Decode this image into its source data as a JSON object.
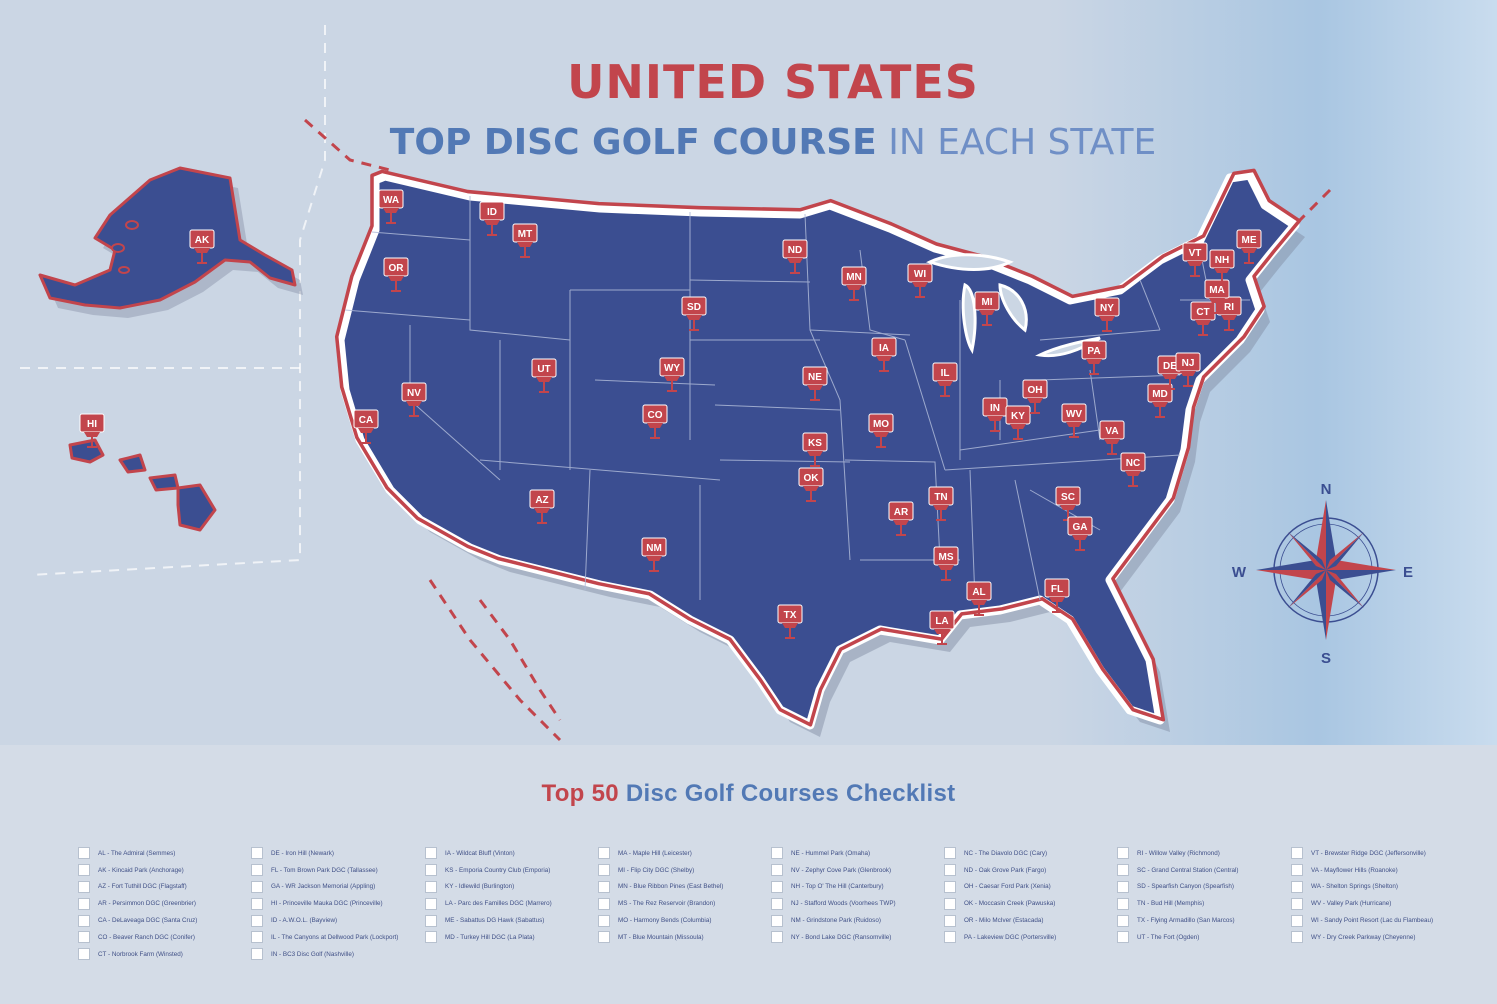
{
  "title": {
    "main": "UNITED STATES",
    "sub_bold": "TOP DISC GOLF COURSE",
    "sub_light": "IN EACH STATE"
  },
  "colors": {
    "land": "#3b4e91",
    "border_red": "#c2454c",
    "title_blue": "#5279b5",
    "background": "#cbd6e4"
  },
  "compass": {
    "n": "N",
    "e": "E",
    "s": "S",
    "w": "W"
  },
  "pins": [
    "WA",
    "OR",
    "ID",
    "MT",
    "CA",
    "NV",
    "UT",
    "WY",
    "CO",
    "AZ",
    "NM",
    "TX",
    "ND",
    "SD",
    "NE",
    "KS",
    "OK",
    "MN",
    "IA",
    "MO",
    "AR",
    "LA",
    "WI",
    "IL",
    "MS",
    "TN",
    "AL",
    "MI",
    "IN",
    "KY",
    "OH",
    "WV",
    "VA",
    "NC",
    "SC",
    "GA",
    "FL",
    "PA",
    "NY",
    "MD",
    "DE",
    "NJ",
    "CT",
    "RI",
    "MA",
    "NH",
    "VT",
    "ME",
    "AK",
    "HI"
  ],
  "checklist": {
    "title_red": "Top 50",
    "title_blue": "Disc Golf Courses Checklist",
    "columns": [
      [
        "AL - The Admiral (Semmes)",
        "AK - Kincaid Park (Anchorage)",
        "AZ - Fort Tuthill DGC (Flagstaff)",
        "AR - Persimmon DGC (Greenbrier)",
        "CA - DeLaveaga DGC (Santa Cruz)",
        "CO - Beaver Ranch DGC (Conifer)",
        "CT - Norbrook Farm (Winsted)"
      ],
      [
        "DE - Iron Hill (Newark)",
        "FL - Tom Brown Park DGC (Tallassee)",
        "GA - WR Jackson Memorial (Appling)",
        "HI - Princeville Mauka DGC (Princeville)",
        "ID - A.W.O.L. (Bayview)",
        "IL - The Canyons at Dellwood Park (Lockport)",
        "IN - BC3 Disc Golf (Nashville)"
      ],
      [
        "IA - Wildcat Bluff (Vinton)",
        "KS - Emporia Country Club (Emporia)",
        "KY - Idlewild (Burlington)",
        "LA - Parc des Familles DGC (Marrero)",
        "ME - Sabattus DG Hawk (Sabattus)",
        "MD - Turkey Hill DGC (La Plata)"
      ],
      [
        "MA - Maple Hill (Leicester)",
        "MI - Flip City DGC (Shelby)",
        "MN - Blue Ribbon Pines (East Bethel)",
        "MS - The Rez Reservoir (Brandon)",
        "MO - Harmony Bends (Columbia)",
        "MT - Blue Mountain (Missoula)"
      ],
      [
        "NE - Hummel Park (Omaha)",
        "NV - Zephyr Cove Park (Glenbrook)",
        "NH - Top O' The Hill (Canterbury)",
        "NJ - Stafford Woods (Voorhees TWP)",
        "NM - Grindstone Park (Ruidoso)",
        "NY - Bond Lake DGC (Ransomville)"
      ],
      [
        "NC - The Diavolo DGC (Cary)",
        "ND - Oak Grove Park (Fargo)",
        "OH - Caesar Ford Park (Xenia)",
        "OK - Moccasin Creek (Pawuska)",
        "OR - Milo McIver (Estacada)",
        "PA - Lakeview DGC (Portersville)"
      ],
      [
        "RI - Willow Valley (Richmond)",
        "SC - Grand Central Station (Central)",
        "SD - Spearfish Canyon (Spearfish)",
        "TN - Bud Hill (Memphis)",
        "TX - Flying Armadillo (San Marcos)",
        "UT - The Fort (Ogden)"
      ],
      [
        "VT - Brewster Ridge DGC (Jeffersonville)",
        "VA - Mayflower Hills (Roanoke)",
        "WA - Shelton Springs (Shelton)",
        "WV - Valley Park (Hurricane)",
        "WI - Sandy Point Resort (Lac du Flambeau)",
        "WY - Dry Creek Parkway (Cheyenne)"
      ]
    ]
  }
}
